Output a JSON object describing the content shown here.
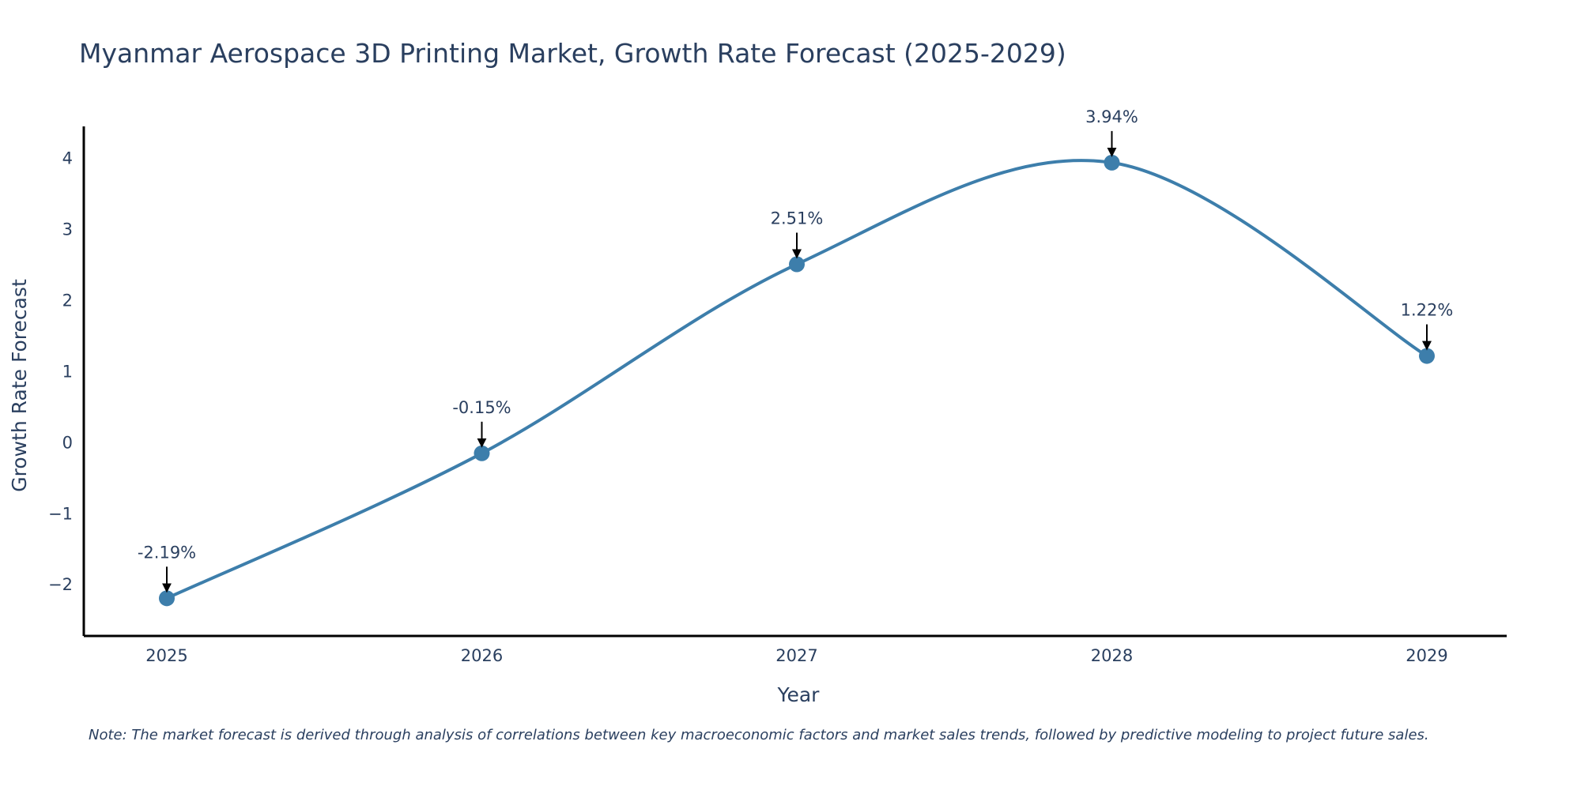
{
  "chart_data": {
    "type": "line",
    "title": "Myanmar Aerospace 3D Printing Market, Growth Rate Forecast (2025-2029)",
    "xlabel": "Year",
    "ylabel": "Growth Rate Forecast",
    "categories": [
      "2025",
      "2026",
      "2027",
      "2028",
      "2029"
    ],
    "series": [
      {
        "name": "Growth Rate Forecast",
        "values": [
          -2.19,
          -0.15,
          2.51,
          3.94,
          1.22
        ]
      }
    ],
    "data_labels": [
      "-2.19%",
      "-0.15%",
      "2.51%",
      "3.94%",
      "1.22%"
    ],
    "yticks": [
      -2,
      -1,
      0,
      1,
      2,
      3,
      4
    ],
    "ytick_labels": [
      "−2",
      "−1",
      "0",
      "1",
      "2",
      "3",
      "4"
    ],
    "ylim": [
      -2.72,
      4.45
    ],
    "grid": false,
    "line_shape": "spline",
    "note": "Note: The market forecast is derived through analysis of correlations between key macroeconomic factors and market sales trends, followed by predictive modeling to project future sales."
  },
  "colors": {
    "line": "#3d7eab",
    "marker": "#3d7eab",
    "axis": "#000000",
    "text": "#2a3f5f",
    "arrow": "#000000"
  }
}
